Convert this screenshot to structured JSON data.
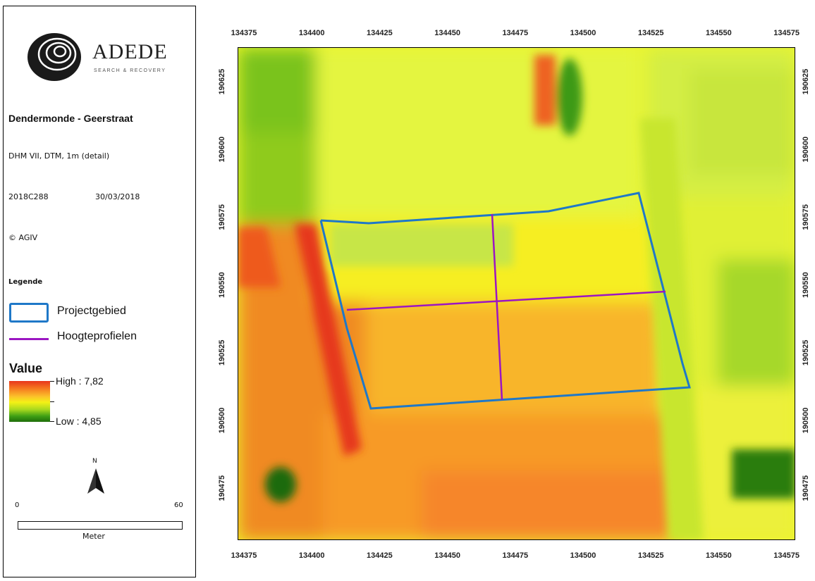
{
  "logo": {
    "name": "ADEDE",
    "tagline": "SEARCH & RECOVERY"
  },
  "panel": {
    "title": "Dendermonde - Geerstraat",
    "dataset": "DHM VII, DTM, 1m (detail)",
    "project_code": "2018C288",
    "date": "30/03/2018",
    "copyright": "© AGIV"
  },
  "legend": {
    "heading": "Legende",
    "project_area_label": "Projectgebied",
    "profiles_label": "Hoogteprofielen",
    "value_heading": "Value",
    "high_label": "High : 7,82",
    "low_label": "Low : 4,85",
    "colors": {
      "high": "#e8361c",
      "mid": "#f4f116",
      "low": "#1f6e0a",
      "project_outline": "#1f78c8",
      "profile_line": "#9b16c2"
    }
  },
  "north_arrow": {
    "label": "N"
  },
  "scale_bar": {
    "start": "0",
    "end": "60",
    "unit": "Meter"
  },
  "map": {
    "x_ticks": [
      "134375",
      "134400",
      "134425",
      "134450",
      "134475",
      "134500",
      "134525",
      "134550",
      "134575"
    ],
    "y_ticks": [
      "190625",
      "190600",
      "190575",
      "190550",
      "190525",
      "190500",
      "190475"
    ]
  }
}
